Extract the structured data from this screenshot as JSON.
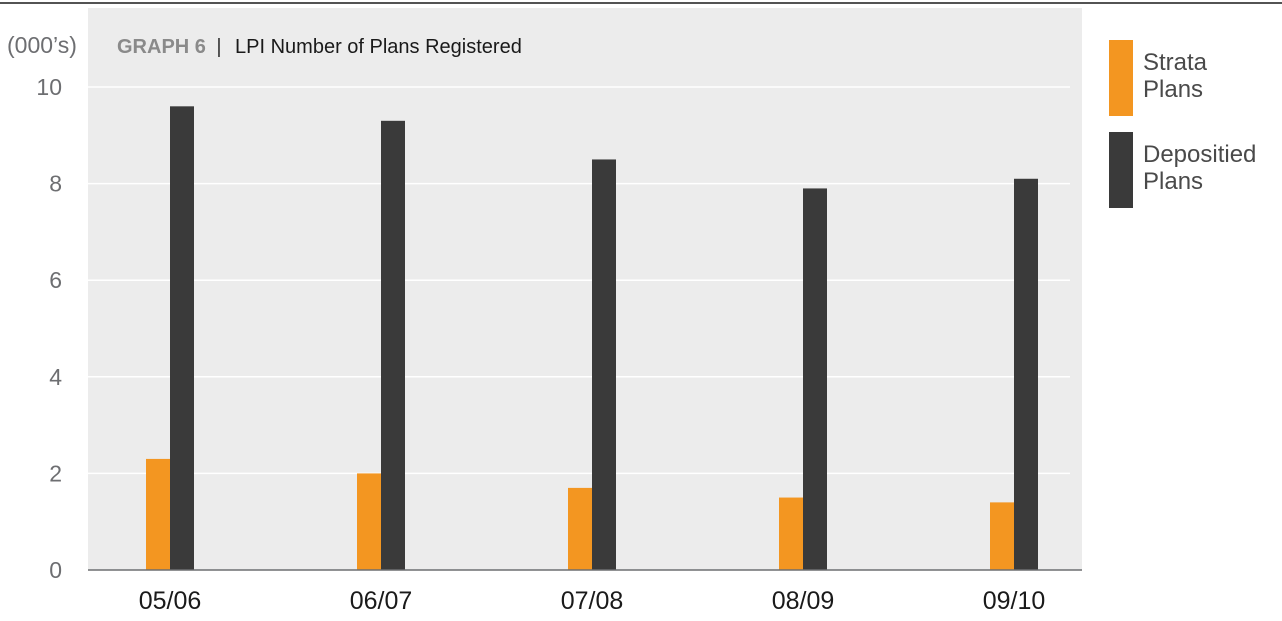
{
  "chart_data": {
    "type": "bar",
    "title_prefix": "GRAPH 6",
    "title_separator": "|",
    "title": "LPI Number of Plans Registered",
    "unit_label": "(000’s)",
    "categories": [
      "05/06",
      "06/07",
      "07/08",
      "08/09",
      "09/10"
    ],
    "series": [
      {
        "name_lines": [
          "Strata",
          "Plans"
        ],
        "color": "#f39621",
        "values": [
          2.3,
          2.0,
          1.7,
          1.5,
          1.4
        ]
      },
      {
        "name_lines": [
          "Depositied",
          "Plans"
        ],
        "color": "#3a3a3a",
        "values": [
          9.6,
          9.3,
          8.5,
          7.9,
          8.1
        ]
      }
    ],
    "y_ticks": [
      "0",
      "2",
      "4",
      "6",
      "8",
      "10"
    ],
    "ylim": [
      0,
      10
    ],
    "grid": true,
    "legend_position": "right",
    "plot_background": "#ececec"
  }
}
